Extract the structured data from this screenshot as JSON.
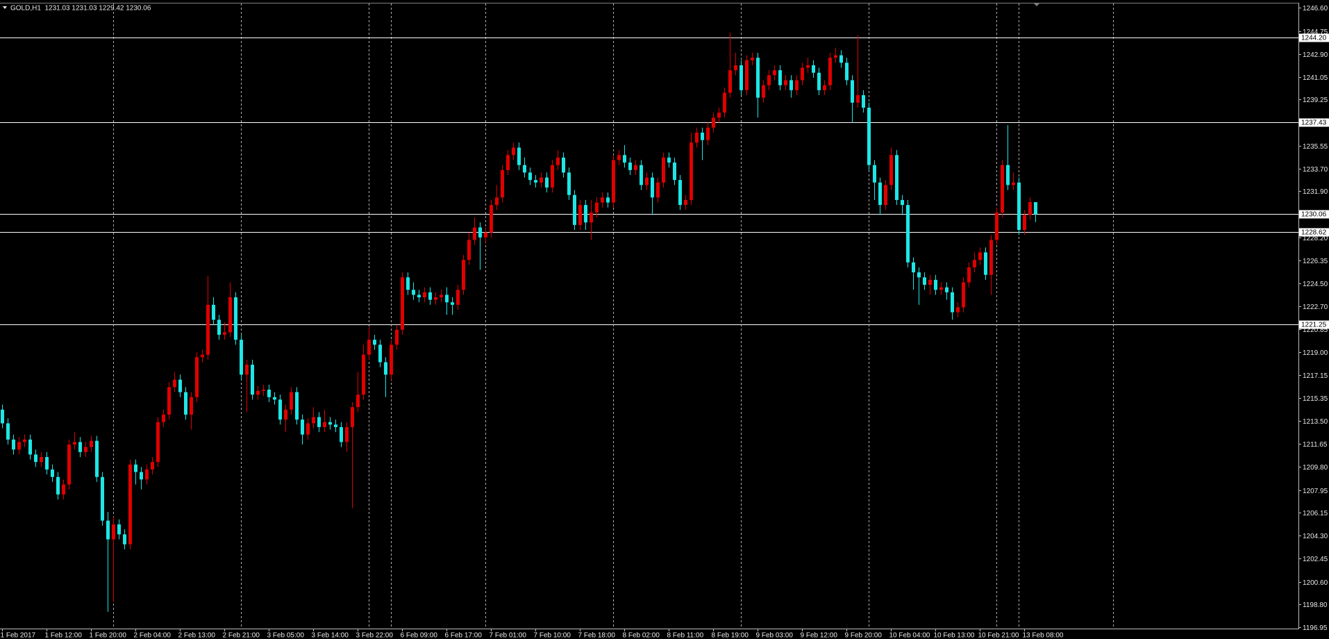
{
  "chart_data": {
    "type": "candlestick",
    "header": "GOLD,H1  1231.03 1231.03 1229.42 1230.06",
    "up_color": "#e00000",
    "down_color": "#1ee6e6",
    "level_color": "#ffffff",
    "grid": true,
    "ylim": [
      1196.85,
      1246.95
    ],
    "yticks": [
      {
        "value": 1246.6,
        "label": "1246.60"
      },
      {
        "value": 1244.75,
        "label": "1244.75"
      },
      {
        "value": 1242.9,
        "label": "1242.90"
      },
      {
        "value": 1241.05,
        "label": "1241.05"
      },
      {
        "value": 1239.25,
        "label": "1239.25"
      },
      {
        "value": 1235.55,
        "label": "1235.55"
      },
      {
        "value": 1233.7,
        "label": "1233.70"
      },
      {
        "value": 1231.9,
        "label": "1231.90"
      },
      {
        "value": 1228.2,
        "label": "1228.20"
      },
      {
        "value": 1226.35,
        "label": "1226.35"
      },
      {
        "value": 1224.5,
        "label": "1224.50"
      },
      {
        "value": 1222.7,
        "label": "1222.70"
      },
      {
        "value": 1220.85,
        "label": "1220.85"
      },
      {
        "value": 1219,
        "label": "1219.00"
      },
      {
        "value": 1217.15,
        "label": "1217.15"
      },
      {
        "value": 1215.35,
        "label": "1215.35"
      },
      {
        "value": 1213.5,
        "label": "1213.50"
      },
      {
        "value": 1211.65,
        "label": "1211.65"
      },
      {
        "value": 1209.8,
        "label": "1209.80"
      },
      {
        "value": 1207.95,
        "label": "1207.95"
      },
      {
        "value": 1206.15,
        "label": "1206.15"
      },
      {
        "value": 1204.3,
        "label": "1204.30"
      },
      {
        "value": 1202.45,
        "label": "1202.45"
      },
      {
        "value": 1200.6,
        "label": "1200.60"
      },
      {
        "value": 1198.8,
        "label": "1198.80"
      },
      {
        "value": 1196.95,
        "label": "1196.95"
      }
    ],
    "levels": [
      {
        "value": 1244.2,
        "label": "1244.20"
      },
      {
        "value": 1237.43,
        "label": "1237.43"
      },
      {
        "value": 1230.06,
        "label": "1230.06"
      },
      {
        "value": 1228.62,
        "label": "1228.62"
      },
      {
        "value": 1221.25,
        "label": "1221.25"
      }
    ],
    "categories": [
      "1 Feb 2017",
      null,
      null,
      null,
      null,
      null,
      null,
      null,
      "1 Feb 12:00",
      null,
      null,
      null,
      null,
      null,
      null,
      null,
      "1 Feb 20:00",
      null,
      null,
      null,
      null,
      null,
      null,
      null,
      "2 Feb 04:00",
      null,
      null,
      null,
      null,
      null,
      null,
      null,
      "2 Feb 13:00",
      null,
      null,
      null,
      null,
      null,
      null,
      null,
      "2 Feb 21:00",
      null,
      null,
      null,
      null,
      null,
      null,
      null,
      "3 Feb 05:00",
      null,
      null,
      null,
      null,
      null,
      null,
      null,
      "3 Feb 14:00",
      null,
      null,
      null,
      null,
      null,
      null,
      null,
      "3 Feb 22:00",
      null,
      null,
      null,
      null,
      null,
      null,
      null,
      "6 Feb 09:00",
      null,
      null,
      null,
      null,
      null,
      null,
      null,
      "6 Feb 17:00",
      null,
      null,
      null,
      null,
      null,
      null,
      null,
      "7 Feb 01:00",
      null,
      null,
      null,
      null,
      null,
      null,
      null,
      "7 Feb 10:00",
      null,
      null,
      null,
      null,
      null,
      null,
      null,
      "7 Feb 18:00",
      null,
      null,
      null,
      null,
      null,
      null,
      null,
      "8 Feb 02:00",
      null,
      null,
      null,
      null,
      null,
      null,
      null,
      "8 Feb 11:00",
      null,
      null,
      null,
      null,
      null,
      null,
      null,
      "8 Feb 19:00",
      null,
      null,
      null,
      null,
      null,
      null,
      null,
      "9 Feb 03:00",
      null,
      null,
      null,
      null,
      null,
      null,
      null,
      "9 Feb 12:00",
      null,
      null,
      null,
      null,
      null,
      null,
      null,
      "9 Feb 20:00",
      null,
      null,
      null,
      null,
      null,
      null,
      null,
      "10 Feb 04:00",
      null,
      null,
      null,
      null,
      null,
      null,
      null,
      "10 Feb 13:00",
      null,
      null,
      null,
      null,
      null,
      null,
      null,
      "10 Feb 21:00",
      null,
      null,
      null,
      null,
      null,
      null,
      null,
      "13 Feb 08:00",
      null,
      null
    ],
    "open": [
      1214.4,
      1213.3,
      1212.0,
      1211.2,
      1211.8,
      1212.0,
      1210.8,
      1210.2,
      1210.6,
      1209.6,
      1209.0,
      1207.6,
      1208.4,
      1211.6,
      1211.8,
      1211.0,
      1211.4,
      1211.9,
      1209.0,
      1205.5,
      1204.0,
      1205.2,
      1204.4,
      1203.6,
      1210.0,
      1209.4,
      1208.8,
      1209.6,
      1210.2,
      1213.4,
      1214.0,
      1216.2,
      1216.8,
      1215.8,
      1214.0,
      1215.4,
      1218.6,
      1218.8,
      1222.8,
      1221.6,
      1220.4,
      1220.6,
      1223.4,
      1220.0,
      1217.2,
      1218.0,
      1215.6,
      1215.9,
      1216.0,
      1215.4,
      1215.2,
      1213.6,
      1214.4,
      1215.8,
      1213.6,
      1212.4,
      1213.3,
      1213.8,
      1213.0,
      1213.4,
      1213.2,
      1213.0,
      1211.8,
      1213.0,
      1214.6,
      1215.6,
      1218.8,
      1220.0,
      1219.6,
      1218.2,
      1217.2,
      1219.6,
      1220.8,
      1225.0,
      1224.0,
      1223.6,
      1223.4,
      1223.8,
      1223.2,
      1223.4,
      1223.6,
      1223.0,
      1222.8,
      1224.0,
      1226.4,
      1228.0,
      1229.0,
      1228.2,
      1228.6,
      1230.8,
      1231.4,
      1233.6,
      1234.8,
      1235.4,
      1234.0,
      1233.4,
      1232.8,
      1232.6,
      1233.0,
      1232.2,
      1234.0,
      1234.6,
      1233.4,
      1231.6,
      1229.2,
      1230.8,
      1229.4,
      1230.2,
      1231.0,
      1231.4,
      1231.0,
      1234.4,
      1234.8,
      1234.2,
      1233.6,
      1234.0,
      1232.4,
      1233.0,
      1231.4,
      1232.6,
      1234.6,
      1234.2,
      1232.8,
      1230.8,
      1231.2,
      1235.8,
      1236.6,
      1236.0,
      1237.0,
      1237.8,
      1238.2,
      1239.8,
      1241.6,
      1242.0,
      1240.0,
      1242.4,
      1242.6,
      1239.4,
      1240.4,
      1241.2,
      1241.6,
      1240.4,
      1240.8,
      1240.0,
      1240.8,
      1241.8,
      1242.0,
      1241.4,
      1240.0,
      1240.4,
      1242.6,
      1242.8,
      1242.2,
      1240.8,
      1239.0,
      1239.6,
      1238.6,
      1234.0,
      1232.6,
      1230.8,
      1232.4,
      1234.8,
      1231.2,
      1230.8,
      1226.2,
      1225.4,
      1225.0,
      1224.4,
      1224.8,
      1224.0,
      1224.2,
      1223.8,
      1222.2,
      1222.6,
      1224.6,
      1225.8,
      1226.4,
      1227.0,
      1225.2,
      1228.0,
      1230.2,
      1234.0,
      1232.4,
      1232.6,
      1228.8,
      1230.0,
      1231.03
    ],
    "high": [
      1214.8,
      1213.7,
      1212.4,
      1212.2,
      1212.4,
      1212.4,
      1211.2,
      1211.0,
      1211.0,
      1210.0,
      1209.4,
      1208.8,
      1212.0,
      1212.6,
      1212.2,
      1211.8,
      1212.3,
      1212.3,
      1209.4,
      1206.2,
      1205.8,
      1205.6,
      1204.8,
      1210.4,
      1210.4,
      1209.8,
      1210.0,
      1210.6,
      1213.8,
      1214.4,
      1216.6,
      1217.4,
      1217.2,
      1216.2,
      1215.8,
      1219.0,
      1219.2,
      1225.1,
      1223.4,
      1222.0,
      1221.4,
      1224.6,
      1223.8,
      1220.4,
      1218.4,
      1218.4,
      1216.3,
      1216.4,
      1216.4,
      1215.8,
      1215.6,
      1214.8,
      1216.2,
      1216.2,
      1214.0,
      1213.7,
      1214.6,
      1214.2,
      1214.4,
      1213.8,
      1213.6,
      1213.4,
      1213.4,
      1215.0,
      1217.4,
      1219.6,
      1221.0,
      1220.4,
      1220.0,
      1218.6,
      1220.0,
      1221.2,
      1225.4,
      1225.4,
      1224.6,
      1224.0,
      1224.2,
      1224.2,
      1223.8,
      1224.0,
      1224.2,
      1223.4,
      1224.4,
      1226.8,
      1228.6,
      1229.8,
      1229.4,
      1229.0,
      1231.2,
      1232.4,
      1234.0,
      1235.2,
      1235.8,
      1235.8,
      1234.6,
      1233.8,
      1233.2,
      1233.4,
      1233.4,
      1234.4,
      1235.2,
      1235.0,
      1233.8,
      1232.0,
      1231.2,
      1231.2,
      1231.2,
      1231.4,
      1231.8,
      1231.8,
      1234.8,
      1235.2,
      1235.6,
      1234.6,
      1234.4,
      1234.4,
      1233.4,
      1233.4,
      1233.0,
      1235.0,
      1235.0,
      1234.6,
      1233.2,
      1231.6,
      1236.6,
      1237.0,
      1237.0,
      1237.4,
      1238.2,
      1238.6,
      1240.2,
      1244.6,
      1243.0,
      1242.4,
      1242.8,
      1243.0,
      1243.0,
      1240.8,
      1241.6,
      1242.0,
      1242.0,
      1241.2,
      1241.2,
      1241.2,
      1242.2,
      1242.6,
      1242.4,
      1241.8,
      1240.8,
      1243.0,
      1243.4,
      1243.2,
      1242.6,
      1241.2,
      1244.4,
      1240.0,
      1239.0,
      1234.4,
      1233.0,
      1232.8,
      1235.4,
      1235.2,
      1231.6,
      1231.2,
      1226.6,
      1225.8,
      1225.4,
      1225.2,
      1225.2,
      1224.6,
      1224.6,
      1224.2,
      1223.0,
      1225.0,
      1226.2,
      1227.0,
      1227.4,
      1227.4,
      1228.4,
      1230.6,
      1234.4,
      1237.2,
      1233.4,
      1233.0,
      1230.4,
      1231.4,
      1231.03
    ],
    "low": [
      1212.9,
      1211.6,
      1210.8,
      1210.8,
      1211.4,
      1210.4,
      1209.8,
      1209.8,
      1209.2,
      1208.6,
      1207.2,
      1207.2,
      1208.0,
      1211.2,
      1210.6,
      1210.6,
      1211.0,
      1208.6,
      1205.1,
      1198.2,
      1199.0,
      1204.0,
      1203.2,
      1203.2,
      1208.4,
      1208.0,
      1208.4,
      1209.2,
      1209.8,
      1213.0,
      1213.6,
      1215.8,
      1215.4,
      1213.6,
      1212.8,
      1215.0,
      1218.2,
      1218.4,
      1221.2,
      1220.0,
      1220.0,
      1220.2,
      1219.6,
      1216.8,
      1214.2,
      1215.2,
      1215.2,
      1215.5,
      1215.0,
      1214.8,
      1213.2,
      1212.6,
      1214.0,
      1213.2,
      1211.6,
      1212.0,
      1212.9,
      1212.6,
      1212.6,
      1212.8,
      1212.6,
      1211.4,
      1211.0,
      1206.5,
      1214.2,
      1215.2,
      1218.4,
      1219.2,
      1217.8,
      1215.4,
      1216.8,
      1219.2,
      1220.4,
      1223.6,
      1223.2,
      1223.0,
      1223.0,
      1222.8,
      1222.8,
      1223.0,
      1222.0,
      1222.0,
      1222.4,
      1223.6,
      1226.0,
      1227.6,
      1225.6,
      1227.8,
      1228.2,
      1230.4,
      1231.0,
      1233.2,
      1234.4,
      1233.6,
      1233.0,
      1232.4,
      1232.2,
      1232.2,
      1231.8,
      1231.8,
      1233.6,
      1233.0,
      1231.2,
      1228.8,
      1228.8,
      1228.8,
      1228.0,
      1229.8,
      1230.6,
      1230.6,
      1230.6,
      1234.0,
      1233.8,
      1233.2,
      1233.2,
      1232.0,
      1232.0,
      1230.0,
      1231.0,
      1232.2,
      1233.8,
      1232.4,
      1230.4,
      1230.4,
      1230.8,
      1235.4,
      1234.4,
      1235.6,
      1236.6,
      1237.4,
      1237.8,
      1239.4,
      1241.2,
      1239.6,
      1239.6,
      1242.0,
      1237.8,
      1239.0,
      1240.0,
      1240.8,
      1240.0,
      1240.0,
      1239.4,
      1239.6,
      1240.4,
      1241.4,
      1241.0,
      1239.6,
      1239.6,
      1240.0,
      1242.2,
      1241.8,
      1240.4,
      1237.4,
      1238.6,
      1238.2,
      1233.6,
      1231.2,
      1230.0,
      1230.4,
      1232.0,
      1230.8,
      1230.0,
      1225.8,
      1224.0,
      1222.8,
      1224.0,
      1223.6,
      1223.6,
      1223.6,
      1223.2,
      1221.6,
      1221.8,
      1222.2,
      1224.2,
      1225.4,
      1226.0,
      1224.8,
      1223.6,
      1227.6,
      1229.8,
      1232.0,
      1232.0,
      1228.4,
      1228.4,
      1229.6,
      1229.42
    ],
    "close": [
      1213.3,
      1212.0,
      1211.2,
      1211.8,
      1212.0,
      1210.8,
      1210.2,
      1210.6,
      1209.6,
      1209.0,
      1207.6,
      1208.4,
      1211.6,
      1211.8,
      1211.0,
      1211.4,
      1211.9,
      1209.0,
      1205.5,
      1204.0,
      1205.2,
      1204.4,
      1203.6,
      1210.0,
      1209.4,
      1208.8,
      1209.6,
      1210.2,
      1213.4,
      1214.0,
      1216.2,
      1216.8,
      1215.8,
      1214.0,
      1215.4,
      1218.6,
      1218.8,
      1222.8,
      1221.6,
      1220.4,
      1220.6,
      1223.4,
      1220.0,
      1217.2,
      1218.0,
      1215.6,
      1215.9,
      1216.0,
      1215.4,
      1215.2,
      1213.6,
      1214.4,
      1215.8,
      1213.6,
      1212.4,
      1213.3,
      1213.8,
      1213.0,
      1213.4,
      1213.2,
      1213.0,
      1211.8,
      1213.0,
      1214.6,
      1215.6,
      1218.8,
      1220.0,
      1219.6,
      1218.2,
      1217.2,
      1219.6,
      1220.8,
      1225.0,
      1224.0,
      1223.6,
      1223.4,
      1223.8,
      1223.2,
      1223.4,
      1223.6,
      1223.0,
      1222.8,
      1224.0,
      1226.4,
      1228.0,
      1229.0,
      1228.2,
      1228.6,
      1230.8,
      1231.4,
      1233.6,
      1234.8,
      1235.4,
      1234.0,
      1233.4,
      1232.8,
      1232.6,
      1233.0,
      1232.2,
      1234.0,
      1234.6,
      1233.4,
      1231.6,
      1229.2,
      1230.8,
      1229.4,
      1230.2,
      1231.0,
      1231.4,
      1231.0,
      1234.4,
      1234.8,
      1234.2,
      1233.6,
      1234.0,
      1232.4,
      1233.0,
      1231.4,
      1232.6,
      1234.6,
      1234.2,
      1232.8,
      1230.8,
      1231.2,
      1235.8,
      1236.6,
      1236.0,
      1237.0,
      1237.8,
      1238.2,
      1239.8,
      1241.6,
      1242.0,
      1240.0,
      1242.4,
      1242.6,
      1239.4,
      1240.4,
      1241.2,
      1241.6,
      1240.4,
      1240.8,
      1240.0,
      1240.8,
      1241.8,
      1242.0,
      1241.4,
      1240.0,
      1240.4,
      1242.6,
      1242.8,
      1242.2,
      1240.8,
      1239.0,
      1239.6,
      1238.6,
      1234.0,
      1232.6,
      1230.8,
      1232.4,
      1234.8,
      1231.2,
      1230.8,
      1226.2,
      1225.4,
      1225.0,
      1224.4,
      1224.8,
      1224.0,
      1224.2,
      1223.8,
      1222.2,
      1222.6,
      1224.6,
      1225.8,
      1226.4,
      1227.0,
      1225.2,
      1228.0,
      1230.2,
      1234.0,
      1232.4,
      1232.6,
      1228.8,
      1230.0,
      1231.03,
      1230.06
    ]
  }
}
